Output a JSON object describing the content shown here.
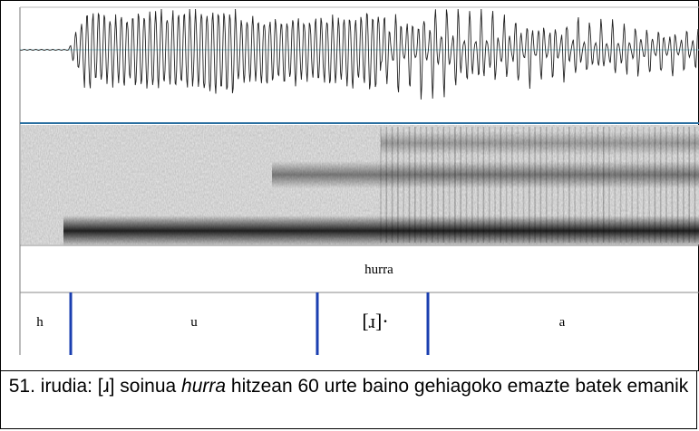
{
  "figure": {
    "word_tier": "hurra",
    "segments": [
      "h",
      "u",
      "[ɹ]·",
      "a"
    ],
    "caption": {
      "prefix": "51. irudia: [ɹ] soinua",
      "italic": "hurra",
      "suffix": "hitzean 60 urte baino gehiagoko emazte batek emanik"
    }
  }
}
